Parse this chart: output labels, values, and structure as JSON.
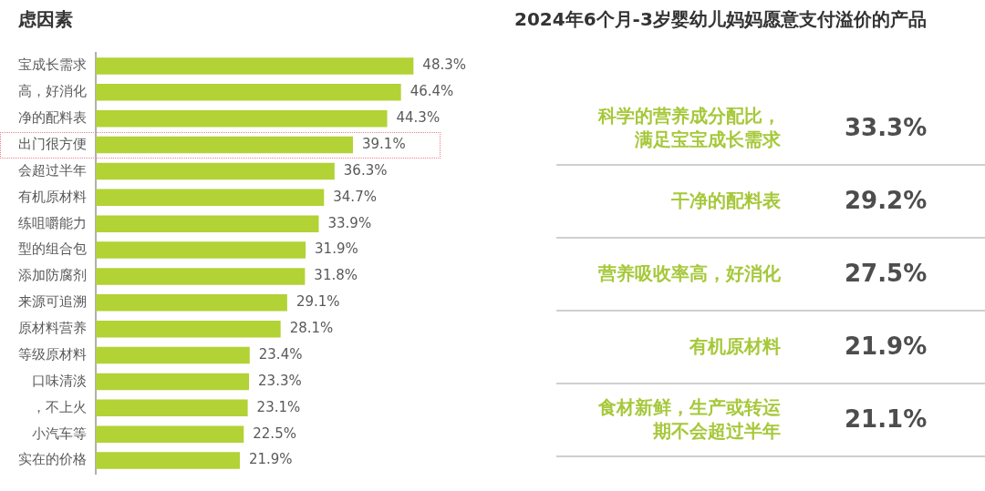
{
  "chart_data": [
    {
      "type": "bar",
      "orientation": "horizontal",
      "title": "虑因素",
      "legend": false,
      "grid": false,
      "tick_labels": "y",
      "categories": [
        "宝成长需求",
        "高，好消化",
        "净的配料表",
        "出门很方便",
        "会超过半年",
        "有机原材料",
        "练咀嚼能力",
        "型的组合包",
        "添加防腐剂",
        "来源可追溯",
        "原材料营养",
        "等级原材料",
        "口味清淡",
        "，不上火",
        "小汽车等",
        "实在的价格"
      ],
      "series": [
        {
          "color": "#b2d235",
          "values": [
            48.3,
            46.4,
            44.3,
            39.1,
            36.3,
            34.7,
            33.9,
            31.9,
            31.8,
            29.1,
            28.1,
            23.4,
            23.3,
            23.1,
            22.5,
            21.9
          ],
          "value_labels": [
            "48.3%",
            "46.4%",
            "44.3%",
            "39.1%",
            "36.3%",
            "34.7%",
            "33.9%",
            "31.9%",
            "31.8%",
            "29.1%",
            "28.1%",
            "23.4%",
            "23.3%",
            "23.1%",
            "22.5%",
            "21.9%"
          ]
        }
      ]
    },
    {
      "type": "other",
      "title": "2024年6个月-3岁婴幼儿妈妈愿意支付溢价的产品",
      "categories": [
        "科学的营养成分配比，满足宝宝成长需求",
        "干净的配料表",
        "营养吸收率高，好消化",
        "有机原材料",
        "食材新鲜，生产或转运期不会超过半年"
      ],
      "values": [
        33.3,
        29.2,
        27.5,
        21.9,
        21.1
      ],
      "value_labels": [
        "33.3%",
        "29.2%",
        "27.5%",
        "21.9%",
        "21.1%"
      ],
      "colors": [
        "#a6c83a",
        "#a6c83a",
        "#a6c83a",
        "#a6c83a",
        "#a6c83a"
      ]
    }
  ]
}
